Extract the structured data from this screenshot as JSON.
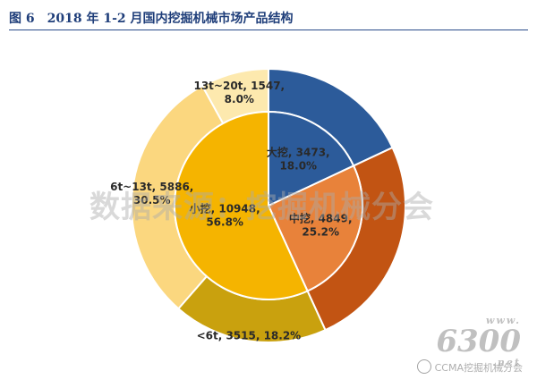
{
  "title": "图 6　2018 年 1-2 月国内挖掘机械市场产品结构",
  "chart_data": {
    "type": "pie",
    "rings": [
      {
        "level": "inner",
        "slices": [
          {
            "label": "大挖, 3473, 18.0%",
            "value": 3473,
            "percent": 18.0,
            "color": "#2c5b9a"
          },
          {
            "label": "中挖, 4849, 25.2%",
            "value": 4849,
            "percent": 25.2,
            "color": "#e8823a"
          },
          {
            "label": "小挖, 10948, 56.8%",
            "value": 10948,
            "percent": 56.8,
            "color": "#f5b400"
          }
        ]
      },
      {
        "level": "outer",
        "slices": [
          {
            "label": "大挖",
            "value": 3473,
            "percent": 18.0,
            "color": "#2c5b9a"
          },
          {
            "label": "中挖",
            "value": 4849,
            "percent": 25.2,
            "color": "#c25413"
          },
          {
            "label": "<6t, 3515, 18.2%",
            "value": 3515,
            "percent": 18.2,
            "color": "#c9a10e"
          },
          {
            "label": "6t~13t, 5886, 30.5%",
            "value": 5886,
            "percent": 30.5,
            "color": "#fbd77f"
          },
          {
            "label": "13t~20t, 1547, 8.0%",
            "value": 1547,
            "percent": 8.0,
            "color": "#fde9ae"
          }
        ]
      }
    ]
  },
  "watermarks": {
    "center": "数据来源：挖掘机械分会",
    "site_www": "www.",
    "site_num": "6300",
    "site_net": ".net",
    "account": "CCMA挖掘机械分会"
  }
}
